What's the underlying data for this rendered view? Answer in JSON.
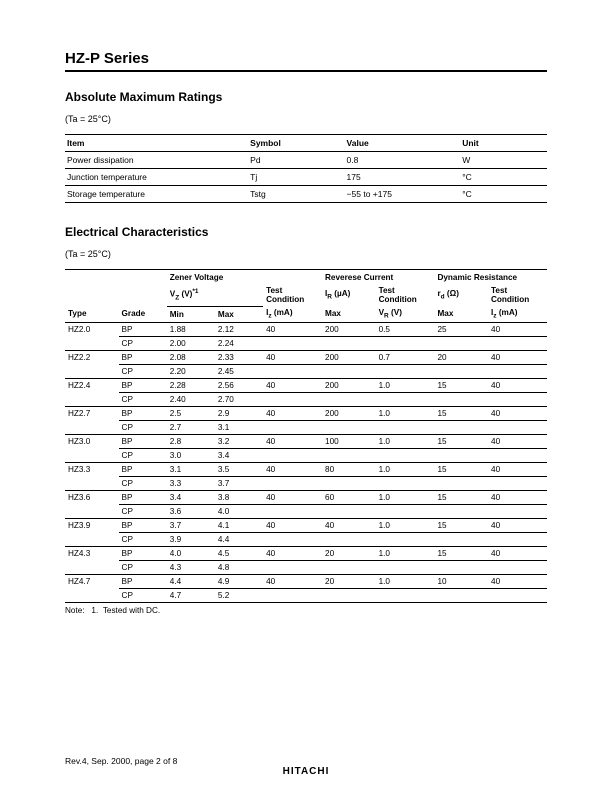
{
  "title": "HZ-P Series",
  "section1": {
    "heading": "Absolute Maximum Ratings",
    "condition": "(Ta = 25°C)",
    "headers": {
      "item": "Item",
      "symbol": "Symbol",
      "value": "Value",
      "unit": "Unit"
    },
    "rows": [
      {
        "item": "Power dissipation",
        "symbol": "Pd",
        "value": "0.8",
        "unit": "W"
      },
      {
        "item": "Junction temperature",
        "symbol": "Tj",
        "value": "175",
        "unit": "°C"
      },
      {
        "item": "Storage temperature",
        "symbol": "Tstg",
        "value": "−55 to +175",
        "unit": "°C"
      }
    ]
  },
  "section2": {
    "heading": "Electrical Characteristics",
    "condition": "(Ta = 25°C)",
    "groupHeaders": {
      "zv": "Zener Voltage",
      "rc": "Reverese Current",
      "dr": "Dynamic Resistance"
    },
    "sub1": {
      "vz": "V",
      "vz_sub": "Z",
      "vz_unit": "(V)",
      "vz_note": "*1",
      "tc": "Test Condition",
      "ir": "I",
      "ir_sub": "R",
      "ir_unit": "(µA)",
      "rd": "r",
      "rd_sub": "d",
      "rd_unit": "(Ω)"
    },
    "sub2": {
      "type": "Type",
      "grade": "Grade",
      "min": "Min",
      "max": "Max",
      "iz": "I",
      "iz_sub": "z",
      "iz_unit": "(mA)",
      "max2": "Max",
      "vr": "V",
      "vr_sub": "R",
      "vr_unit": "(V)",
      "max3": "Max",
      "iz2": "I",
      "iz2_sub": "z",
      "iz2_unit": "(mA)"
    },
    "rows": [
      {
        "type": "HZ2.0",
        "grade": "BP",
        "min": "1.88",
        "max": "2.12",
        "iz": "40",
        "irmax": "200",
        "vr": "0.5",
        "rdmax": "25",
        "iz2": "40"
      },
      {
        "type": "",
        "grade": "CP",
        "min": "2.00",
        "max": "2.24",
        "iz": "",
        "irmax": "",
        "vr": "",
        "rdmax": "",
        "iz2": ""
      },
      {
        "type": "HZ2.2",
        "grade": "BP",
        "min": "2.08",
        "max": "2.33",
        "iz": "40",
        "irmax": "200",
        "vr": "0.7",
        "rdmax": "20",
        "iz2": "40"
      },
      {
        "type": "",
        "grade": "CP",
        "min": "2.20",
        "max": "2.45",
        "iz": "",
        "irmax": "",
        "vr": "",
        "rdmax": "",
        "iz2": ""
      },
      {
        "type": "HZ2.4",
        "grade": "BP",
        "min": "2.28",
        "max": "2.56",
        "iz": "40",
        "irmax": "200",
        "vr": "1.0",
        "rdmax": "15",
        "iz2": "40"
      },
      {
        "type": "",
        "grade": "CP",
        "min": "2.40",
        "max": "2.70",
        "iz": "",
        "irmax": "",
        "vr": "",
        "rdmax": "",
        "iz2": ""
      },
      {
        "type": "HZ2.7",
        "grade": "BP",
        "min": "2.5",
        "max": "2.9",
        "iz": "40",
        "irmax": "200",
        "vr": "1.0",
        "rdmax": "15",
        "iz2": "40"
      },
      {
        "type": "",
        "grade": "CP",
        "min": "2.7",
        "max": "3.1",
        "iz": "",
        "irmax": "",
        "vr": "",
        "rdmax": "",
        "iz2": ""
      },
      {
        "type": "HZ3.0",
        "grade": "BP",
        "min": "2.8",
        "max": "3.2",
        "iz": "40",
        "irmax": "100",
        "vr": "1.0",
        "rdmax": "15",
        "iz2": "40"
      },
      {
        "type": "",
        "grade": "CP",
        "min": "3.0",
        "max": "3.4",
        "iz": "",
        "irmax": "",
        "vr": "",
        "rdmax": "",
        "iz2": ""
      },
      {
        "type": "HZ3.3",
        "grade": "BP",
        "min": "3.1",
        "max": "3.5",
        "iz": "40",
        "irmax": "80",
        "vr": "1.0",
        "rdmax": "15",
        "iz2": "40"
      },
      {
        "type": "",
        "grade": "CP",
        "min": "3.3",
        "max": "3.7",
        "iz": "",
        "irmax": "",
        "vr": "",
        "rdmax": "",
        "iz2": ""
      },
      {
        "type": "HZ3.6",
        "grade": "BP",
        "min": "3.4",
        "max": "3.8",
        "iz": "40",
        "irmax": "60",
        "vr": "1.0",
        "rdmax": "15",
        "iz2": "40"
      },
      {
        "type": "",
        "grade": "CP",
        "min": "3.6",
        "max": "4.0",
        "iz": "",
        "irmax": "",
        "vr": "",
        "rdmax": "",
        "iz2": ""
      },
      {
        "type": "HZ3.9",
        "grade": "BP",
        "min": "3.7",
        "max": "4.1",
        "iz": "40",
        "irmax": "40",
        "vr": "1.0",
        "rdmax": "15",
        "iz2": "40"
      },
      {
        "type": "",
        "grade": "CP",
        "min": "3.9",
        "max": "4.4",
        "iz": "",
        "irmax": "",
        "vr": "",
        "rdmax": "",
        "iz2": ""
      },
      {
        "type": "HZ4.3",
        "grade": "BP",
        "min": "4.0",
        "max": "4.5",
        "iz": "40",
        "irmax": "20",
        "vr": "1.0",
        "rdmax": "15",
        "iz2": "40"
      },
      {
        "type": "",
        "grade": "CP",
        "min": "4.3",
        "max": "4.8",
        "iz": "",
        "irmax": "",
        "vr": "",
        "rdmax": "",
        "iz2": ""
      },
      {
        "type": "HZ4.7",
        "grade": "BP",
        "min": "4.4",
        "max": "4.9",
        "iz": "40",
        "irmax": "20",
        "vr": "1.0",
        "rdmax": "10",
        "iz2": "40"
      },
      {
        "type": "",
        "grade": "CP",
        "min": "4.7",
        "max": "5.2",
        "iz": "",
        "irmax": "",
        "vr": "",
        "rdmax": "",
        "iz2": ""
      }
    ],
    "note_label": "Note:",
    "note_num": "1.",
    "note_text": "Tested with DC."
  },
  "footer": {
    "rev": "Rev.4, Sep. 2000, page 2 of 8",
    "brand": "HITACHI"
  }
}
